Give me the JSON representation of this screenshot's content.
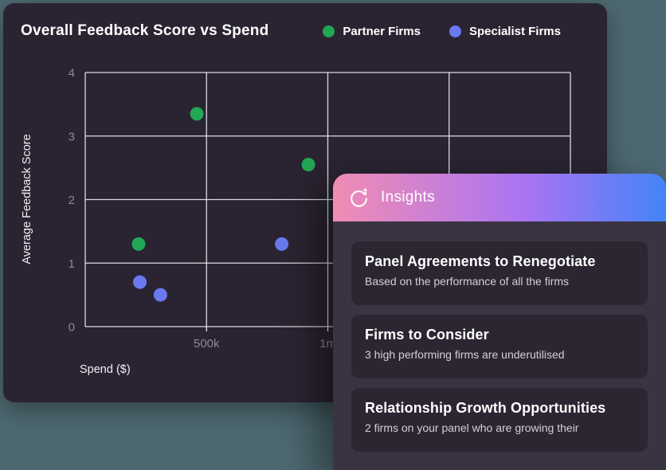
{
  "background_color": "#4d6870",
  "chart_card": {
    "title": "Overall Feedback Score vs Spend",
    "xlabel": "Spend ($)",
    "ylabel": "Average Feedback Score",
    "legend": [
      {
        "label": "Partner Firms",
        "color": "#22a755"
      },
      {
        "label": "Specialist Firms",
        "color": "#6b79f0"
      }
    ]
  },
  "chart_data": {
    "type": "scatter",
    "title": "Overall Feedback Score vs Spend",
    "xlabel": "Spend ($)",
    "ylabel": "Average Feedback Score",
    "xlim": [
      0,
      2000000
    ],
    "ylim": [
      0,
      4
    ],
    "grid": true,
    "grid_color": "#eceaf0",
    "legend_position": "top-right",
    "x_ticks": [
      {
        "value": 500000,
        "label": "500k"
      },
      {
        "value": 1000000,
        "label": "1m"
      }
    ],
    "y_ticks": [
      {
        "value": 0,
        "label": "0"
      },
      {
        "value": 1,
        "label": "1"
      },
      {
        "value": 2,
        "label": "2"
      },
      {
        "value": 3,
        "label": "3"
      },
      {
        "value": 4,
        "label": "4"
      }
    ],
    "x_gridlines": [
      0,
      500000,
      1000000,
      1500000,
      2000000
    ],
    "y_gridlines": [
      0,
      1,
      2,
      3,
      4
    ],
    "tick_label_color": "#8d8995",
    "series": [
      {
        "name": "Partner Firms",
        "color": "#22a755",
        "points": [
          {
            "x": 460000,
            "y": 3.35
          },
          {
            "x": 920000,
            "y": 2.55
          },
          {
            "x": 220000,
            "y": 1.3
          }
        ]
      },
      {
        "name": "Specialist Firms",
        "color": "#6b79f0",
        "points": [
          {
            "x": 810000,
            "y": 1.3
          },
          {
            "x": 225000,
            "y": 0.7
          },
          {
            "x": 310000,
            "y": 0.5
          }
        ]
      }
    ]
  },
  "insights_panel": {
    "header": {
      "title": "Insights",
      "icon": "refresh-sparkle-icon",
      "gradient": [
        "#f18cb3",
        "#a974f2",
        "#4484f8"
      ]
    },
    "cards": [
      {
        "title": "Panel Agreements to Renegotiate",
        "subtitle": "Based on the performance of all the firms"
      },
      {
        "title": "Firms to Consider",
        "subtitle": "3 high performing firms are underutilised"
      },
      {
        "title": "Relationship Growth Opportunities",
        "subtitle": "2 firms on your panel who are growing their"
      }
    ]
  }
}
